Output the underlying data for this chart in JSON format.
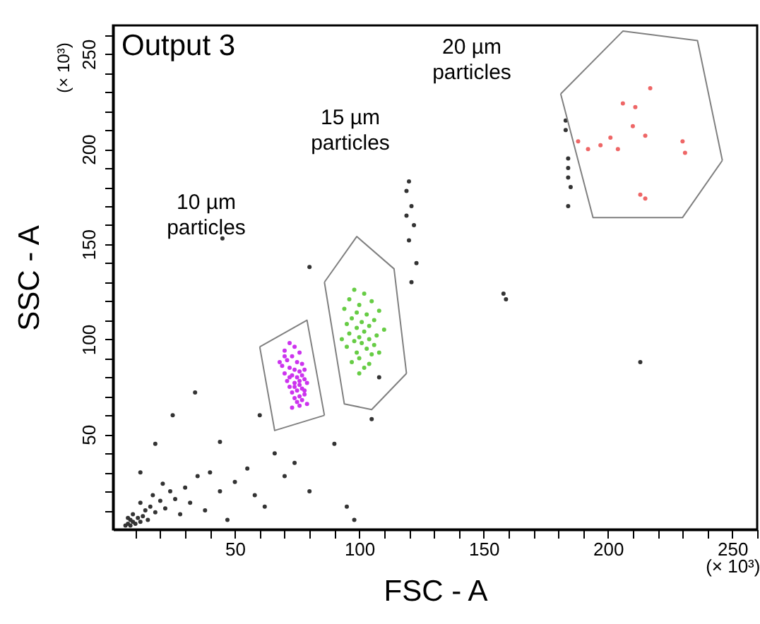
{
  "chart_data": {
    "type": "scatter",
    "title": "Output 3",
    "xlabel": "FSC - A",
    "ylabel": "SSC - A",
    "xlim": [
      1,
      260
    ],
    "ylim": [
      0,
      265
    ],
    "xticks": [
      {
        "value": 10,
        "label": null
      },
      {
        "value": 20,
        "label": null
      },
      {
        "value": 30,
        "label": null
      },
      {
        "value": 40,
        "label": null
      },
      50,
      {
        "value": 60,
        "label": null
      },
      {
        "value": 70,
        "label": null
      },
      {
        "value": 80,
        "label": null
      },
      {
        "value": 90,
        "label": null
      },
      100,
      {
        "value": 110,
        "label": null
      },
      {
        "value": 120,
        "label": null
      },
      {
        "value": 130,
        "label": null
      },
      {
        "value": 140,
        "label": null
      },
      150,
      {
        "value": 160,
        "label": null
      },
      {
        "value": 170,
        "label": null
      },
      {
        "value": 180,
        "label": null
      },
      {
        "value": 190,
        "label": null
      },
      200,
      {
        "value": 210,
        "label": null
      },
      {
        "value": 220,
        "label": null
      },
      {
        "value": 230,
        "label": null
      },
      {
        "value": 240,
        "label": null
      },
      {
        "value": 250,
        "label": "250 (× 10³)"
      },
      {
        "value": 260,
        "label": null
      }
    ],
    "yticks": [
      {
        "value": 10,
        "label": null
      },
      {
        "value": 20,
        "label": null
      },
      {
        "value": 30,
        "label": null
      },
      {
        "value": 40,
        "label": null
      },
      50,
      {
        "value": 60,
        "label": null
      },
      {
        "value": 70,
        "label": null
      },
      {
        "value": 80,
        "label": null
      },
      {
        "value": 90,
        "label": null
      },
      100,
      {
        "value": 110,
        "label": null
      },
      {
        "value": 120,
        "label": null
      },
      {
        "value": 130,
        "label": null
      },
      {
        "value": 140,
        "label": null
      },
      150,
      {
        "value": 160,
        "label": null
      },
      {
        "value": 170,
        "label": null
      },
      {
        "value": 180,
        "label": null
      },
      {
        "value": 190,
        "label": null
      },
      200,
      {
        "value": 210,
        "label": null
      },
      {
        "value": 220,
        "label": null
      },
      {
        "value": 230,
        "label": null
      },
      {
        "value": 240,
        "label": null
      },
      250,
      {
        "value": 260,
        "label": null
      }
    ],
    "grid": false,
    "marker": "circle",
    "annotations": [
      "(× 10³)",
      "10 µm particles",
      "15 µm particles",
      "20 µm particles"
    ],
    "series": [
      {
        "color": "#333333",
        "x": [
          6,
          7,
          8,
          9,
          10,
          8,
          11,
          12,
          13,
          7,
          9,
          14,
          15,
          16,
          12,
          18,
          20,
          17,
          22,
          24,
          21,
          26,
          28,
          30,
          32,
          35,
          38,
          40,
          44,
          47,
          50,
          55,
          58,
          62,
          66,
          70,
          74,
          80,
          90,
          95,
          98,
          105,
          108,
          12,
          18,
          25,
          34,
          44,
          60,
          45,
          80,
          120,
          119,
          121,
          119,
          122,
          120,
          123,
          121,
          158,
          159,
          213,
          183,
          183,
          184,
          184,
          184,
          185,
          184
        ],
        "values": [
          2,
          3,
          2,
          4,
          3,
          5,
          6,
          4,
          7,
          6,
          8,
          10,
          5,
          12,
          14,
          9,
          15,
          18,
          11,
          20,
          24,
          16,
          8,
          22,
          14,
          28,
          10,
          30,
          20,
          5,
          25,
          32,
          18,
          12,
          40,
          28,
          35,
          20,
          45,
          12,
          5,
          58,
          80,
          30,
          45,
          60,
          72,
          46,
          60,
          153,
          138,
          183,
          178,
          170,
          165,
          160,
          152,
          140,
          130,
          124,
          121,
          88,
          215,
          210,
          195,
          190,
          185,
          180,
          170
        ]
      },
      {
        "color": "#cc33ee",
        "x": [
          72,
          74,
          70,
          76,
          73,
          71,
          75,
          77,
          69,
          72,
          74,
          76,
          70,
          73,
          75,
          78,
          71,
          74,
          76,
          72,
          77,
          75,
          73,
          78,
          76,
          74,
          77,
          75,
          79,
          76,
          73,
          78,
          70,
          68,
          79,
          72,
          78,
          77,
          74,
          76
        ],
        "values": [
          98,
          96,
          94,
          93,
          91,
          89,
          88,
          87,
          86,
          85,
          84,
          83,
          82,
          81,
          80,
          79,
          78,
          77,
          76,
          75,
          74,
          73,
          72,
          71,
          70,
          69,
          68,
          67,
          66,
          65,
          64,
          73,
          91,
          88,
          77,
          80,
          84,
          81,
          75,
          78
        ]
      },
      {
        "color": "#66cc44",
        "x": [
          98,
          102,
          96,
          105,
          100,
          94,
          108,
          99,
          103,
          97,
          106,
          101,
          95,
          104,
          99,
          110,
          102,
          96,
          107,
          100,
          104,
          98,
          101,
          106,
          95,
          103,
          99,
          105,
          100,
          97,
          104,
          108,
          93,
          102,
          100
        ],
        "values": [
          126,
          124,
          121,
          120,
          118,
          116,
          115,
          114,
          113,
          111,
          110,
          109,
          108,
          107,
          106,
          105,
          104,
          103,
          102,
          101,
          100,
          99,
          98,
          97,
          96,
          95,
          93,
          92,
          90,
          88,
          87,
          93,
          100,
          85,
          82
        ]
      },
      {
        "color": "#ee6666",
        "x": [
          206,
          217,
          211,
          210,
          215,
          201,
          192,
          197,
          204,
          230,
          231,
          215,
          213,
          188
        ],
        "values": [
          224,
          232,
          222,
          212,
          207,
          206,
          200,
          202,
          200,
          204,
          198,
          174,
          176,
          204
        ]
      },
      {
        "type": "line",
        "marker": "none",
        "color": "#808080",
        "x": [
          60,
          79,
          86
        ],
        "values": [
          96,
          110,
          60
        ]
      },
      {
        "type": "line",
        "marker": "none",
        "color": "#808080",
        "x": [
          60,
          66,
          86
        ],
        "values": [
          96,
          52,
          60
        ]
      },
      {
        "type": "line",
        "marker": "none",
        "color": "#808080",
        "x": [
          86,
          99,
          114,
          119
        ],
        "values": [
          130,
          154,
          137,
          82
        ]
      },
      {
        "type": "line",
        "marker": "none",
        "color": "#808080",
        "x": [
          86,
          94,
          105,
          119
        ],
        "values": [
          130,
          66,
          63,
          82
        ]
      },
      {
        "type": "line",
        "marker": "none",
        "color": "#808080",
        "x": [
          181,
          206,
          236,
          246
        ],
        "values": [
          229,
          262,
          257,
          194
        ]
      },
      {
        "type": "line",
        "marker": "none",
        "color": "#808080",
        "x": [
          181,
          194,
          230,
          246
        ],
        "values": [
          229,
          164,
          164,
          194
        ]
      }
    ]
  }
}
